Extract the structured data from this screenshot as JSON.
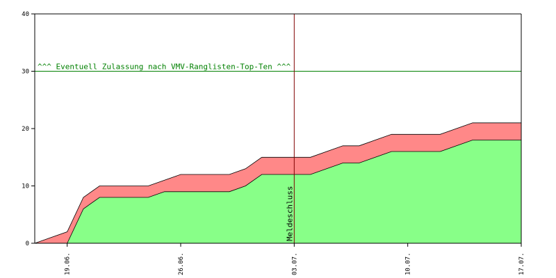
{
  "chart_data": {
    "type": "area",
    "title": "",
    "xlabel": "",
    "ylabel": "",
    "x": [
      "2024-06-16",
      "2024-06-17",
      "2024-06-18",
      "2024-06-19",
      "2024-06-20",
      "2024-06-21",
      "2024-06-22",
      "2024-06-23",
      "2024-06-24",
      "2024-06-25",
      "2024-06-26",
      "2024-06-27",
      "2024-06-28",
      "2024-06-29",
      "2024-06-30",
      "2024-07-01",
      "2024-07-02",
      "2024-07-03",
      "2024-07-04",
      "2024-07-05",
      "2024-07-06",
      "2024-07-07",
      "2024-07-08",
      "2024-07-09",
      "2024-07-10",
      "2024-07-11",
      "2024-07-12",
      "2024-07-13",
      "2024-07-14",
      "2024-07-15",
      "2024-07-16",
      "2024-07-17"
    ],
    "series": [
      {
        "color": "#88ff88",
        "values": [
          0,
          0,
          0,
          0,
          6,
          8,
          8,
          8,
          8,
          9,
          9,
          9,
          9,
          9,
          10,
          12,
          12,
          12,
          12,
          13,
          14,
          14,
          15,
          16,
          16,
          16,
          16,
          17,
          18,
          18,
          18,
          18
        ]
      },
      {
        "color": "#ff8888",
        "values": [
          0,
          0,
          1,
          2,
          8,
          10,
          10,
          10,
          10,
          11,
          12,
          12,
          12,
          12,
          13,
          15,
          15,
          15,
          15,
          16,
          17,
          17,
          18,
          19,
          19,
          19,
          19,
          20,
          21,
          21,
          21,
          21
        ]
      }
    ],
    "ylim": [
      0,
      40
    ],
    "yticks": [
      0,
      10,
      20,
      30,
      40
    ],
    "xticks": [
      {
        "date": "2024-06-19",
        "label": "19.06."
      },
      {
        "date": "2024-06-26",
        "label": "26.06."
      },
      {
        "date": "2024-07-03",
        "label": "03.07."
      },
      {
        "date": "2024-07-10",
        "label": "10.07."
      },
      {
        "date": "2024-07-17",
        "label": "17.07."
      }
    ],
    "xlim": [
      "2024-06-17",
      "2024-07-17"
    ],
    "hline": {
      "y": 30,
      "color": "#008000",
      "label": "^^^ Eventuell Zulassung nach VMV-Ranglisten-Top-Ten ^^^"
    },
    "vline": {
      "date": "2024-07-03",
      "color": "#800000",
      "label": "Meldeschluss"
    },
    "grid": false,
    "legend": "none"
  }
}
